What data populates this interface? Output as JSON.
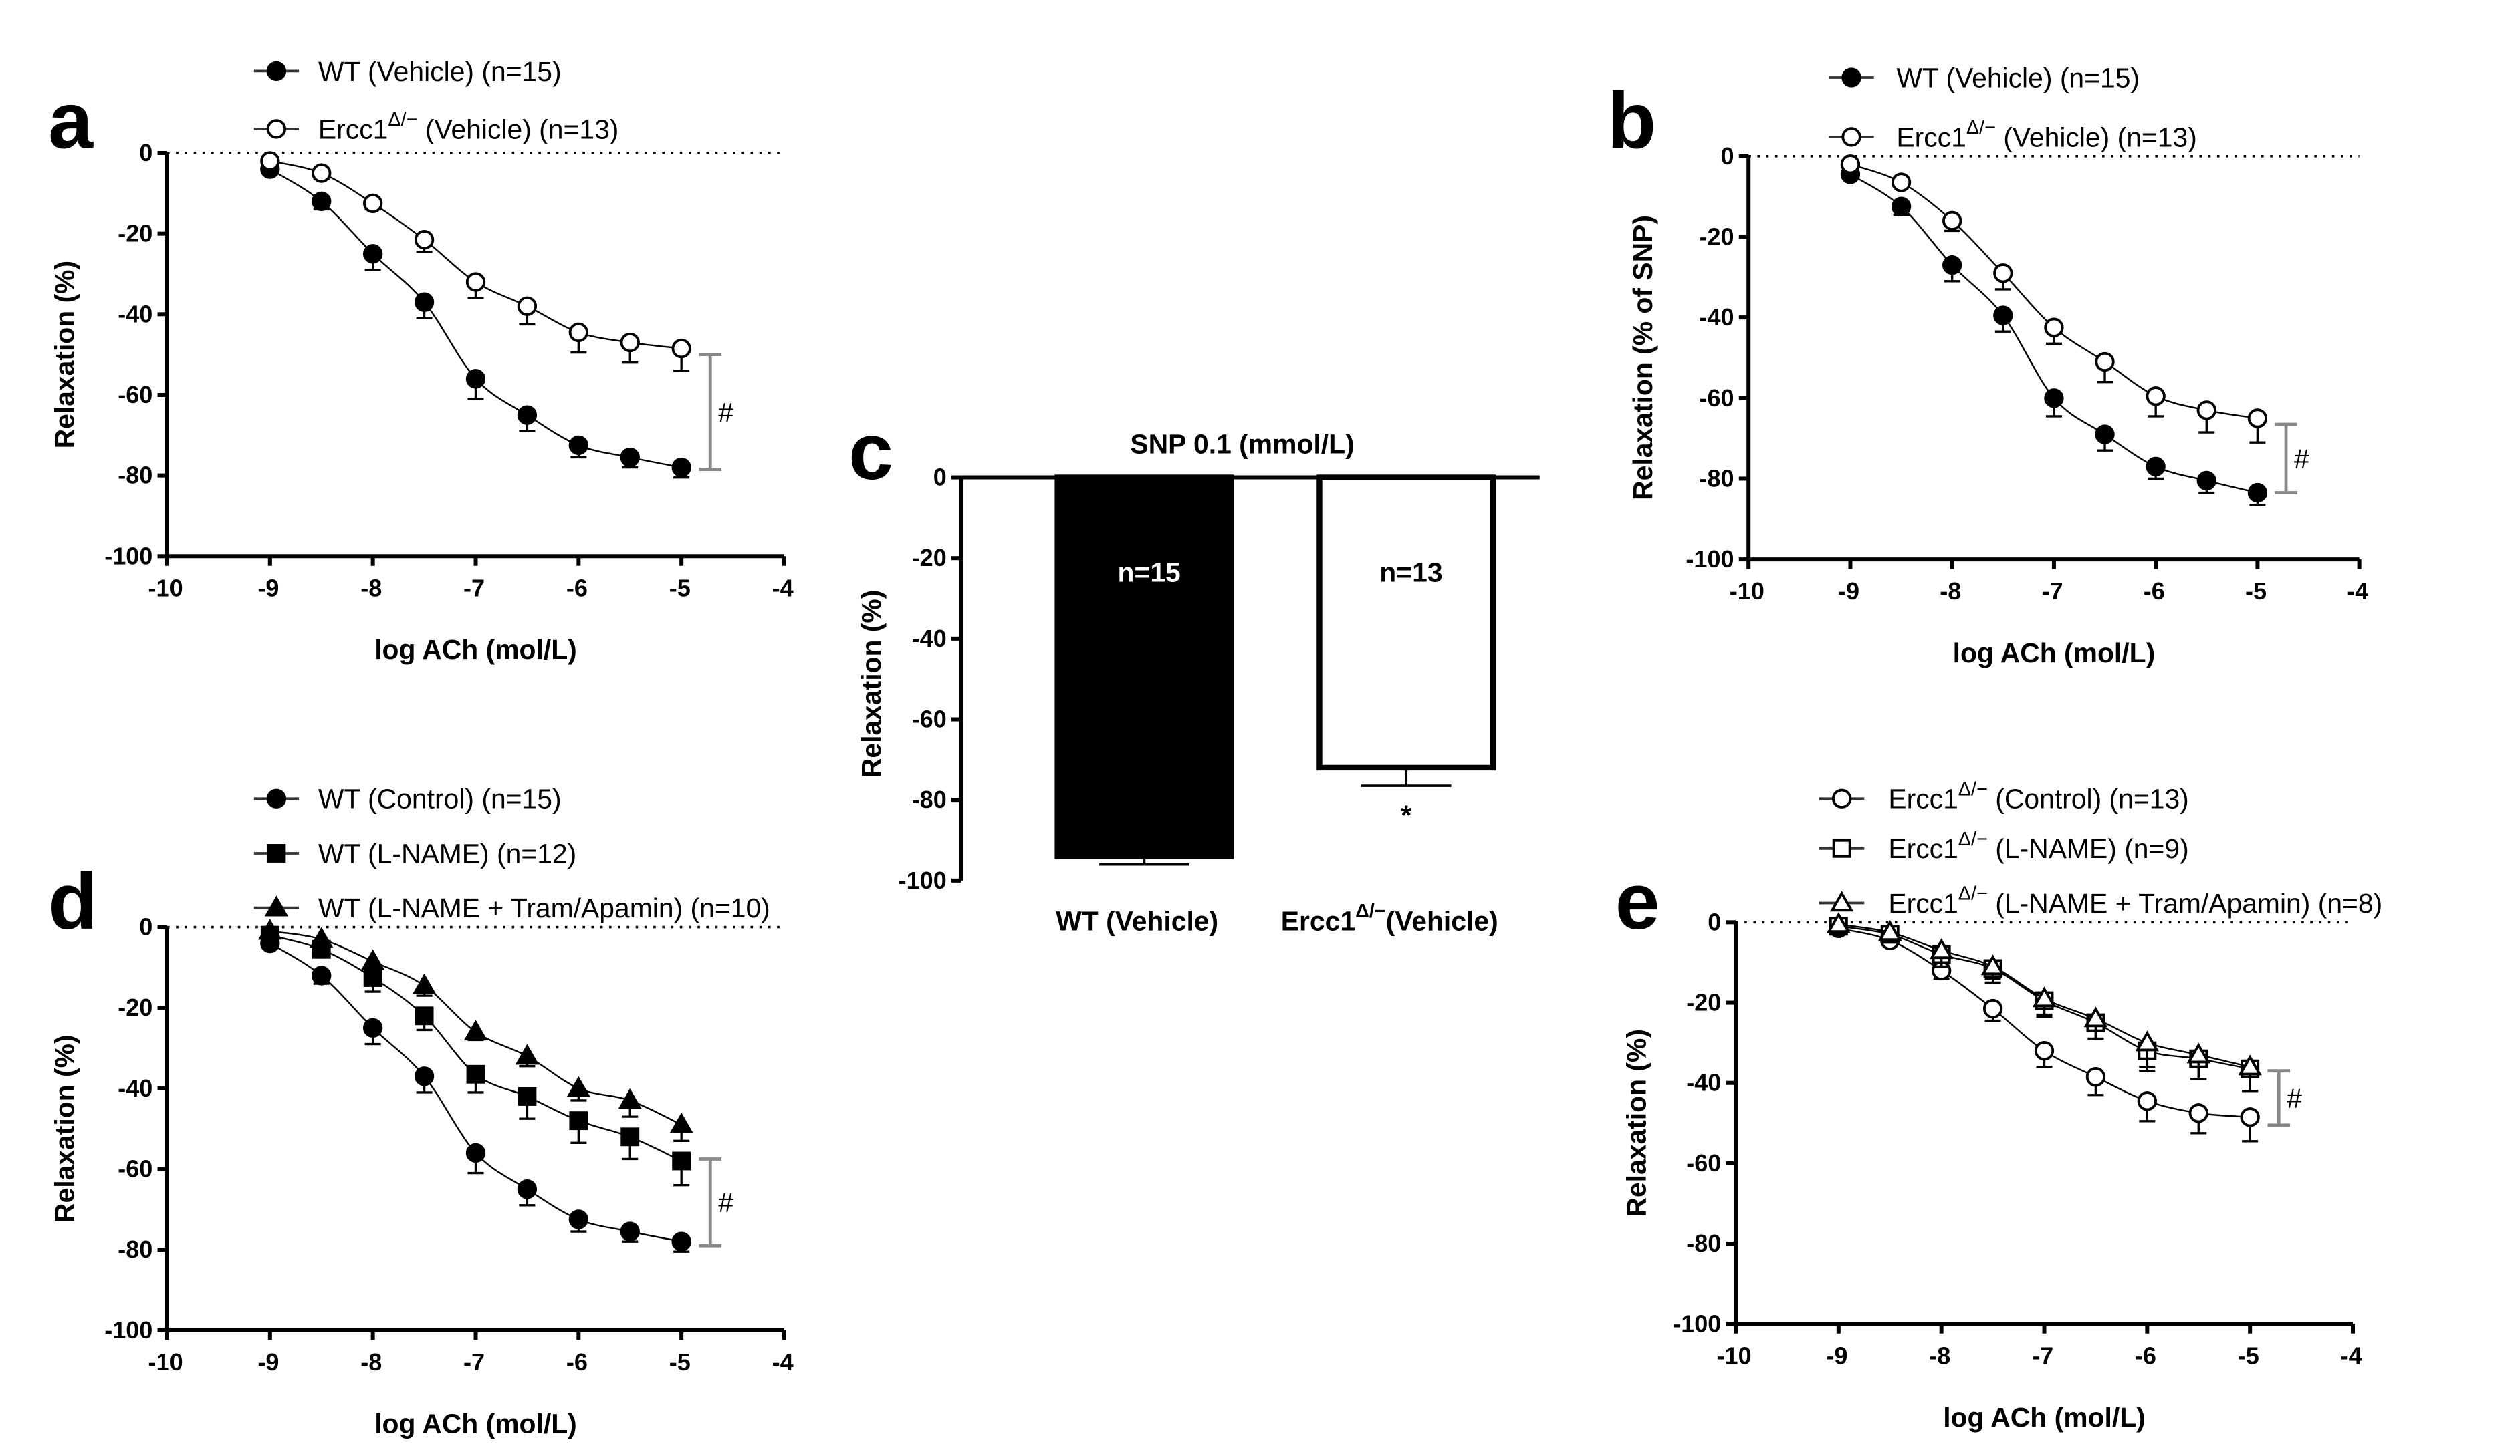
{
  "chart_data": [
    {
      "panel": "a",
      "type": "line",
      "xlabel": "log ACh (mol/L)",
      "ylabel": "Relaxation (%)",
      "xlim": [
        -10,
        -4
      ],
      "ylim": [
        -100,
        0
      ],
      "xticks": [
        -10,
        -9,
        -8,
        -7,
        -6,
        -5,
        -4
      ],
      "yticks": [
        0,
        -20,
        -40,
        -60,
        -80,
        -100
      ],
      "x": [
        -9,
        -8.5,
        -8,
        -7.5,
        -7,
        -6.5,
        -6,
        -5.5,
        -5
      ],
      "series": [
        {
          "name": "WT (Vehicle) (n=15)",
          "label": "WT (Vehicle) (n=15)",
          "marker": "circle-filled",
          "values": [
            -4,
            -12,
            -25,
            -37,
            -56,
            -65,
            -72.5,
            -75.5,
            -78
          ],
          "sem": [
            1,
            2,
            4,
            4,
            5,
            4,
            3,
            2.5,
            2.5
          ]
        },
        {
          "name": "Ercc1Δ/− (Vehicle) (n=13)",
          "label": "Ercc1",
          "sup": "Δ/−",
          "rest": " (Vehicle) (n=13)",
          "marker": "circle-open",
          "values": [
            -2,
            -5,
            -12.5,
            -21.5,
            -32,
            -38,
            -44.5,
            -47,
            -48.5
          ],
          "sem": [
            1,
            1.5,
            1.5,
            3,
            4,
            4.5,
            5,
            5,
            5.5
          ]
        }
      ],
      "significance": {
        "symbol": "#",
        "range": [
          -50,
          -78.5
        ]
      }
    },
    {
      "panel": "b",
      "type": "line",
      "xlabel": "log ACh (mol/L)",
      "ylabel": "Relaxation (% of SNP)",
      "xlim": [
        -10,
        -4
      ],
      "ylim": [
        -100,
        0
      ],
      "xticks": [
        -10,
        -9,
        -8,
        -7,
        -6,
        -5,
        -4
      ],
      "yticks": [
        0,
        -20,
        -40,
        -60,
        -80,
        -100
      ],
      "x": [
        -9,
        -8.5,
        -8,
        -7.5,
        -7,
        -6.5,
        -6,
        -5.5,
        -5
      ],
      "series": [
        {
          "name": "WT (Vehicle) (n=15)",
          "label": "WT (Vehicle) (n=15)",
          "marker": "circle-filled",
          "values": [
            -4.5,
            -12.5,
            -27,
            -39.5,
            -60,
            -69,
            -77,
            -80.5,
            -83.5
          ],
          "sem": [
            1,
            2,
            4,
            4,
            4.5,
            4,
            3,
            3,
            3
          ]
        },
        {
          "name": "Ercc1Δ/− (Vehicle) (n=13)",
          "label": "Ercc1",
          "sup": "Δ/−",
          "rest": " (Vehicle) (n=13)",
          "marker": "circle-open",
          "values": [
            -2,
            -6.5,
            -16,
            -29,
            -42.5,
            -51,
            -59.5,
            -63,
            -65
          ],
          "sem": [
            1,
            1,
            2.5,
            4,
            4,
            5,
            5,
            5.5,
            6
          ]
        }
      ],
      "significance": {
        "symbol": "#",
        "range": [
          -66.5,
          -83.5
        ]
      }
    },
    {
      "panel": "c",
      "type": "bar",
      "title": "SNP 0.1 (mmol/L)",
      "ylabel": "Relaxation (%)",
      "ylim": [
        -100,
        0
      ],
      "yticks": [
        0,
        -20,
        -40,
        -60,
        -80,
        -100
      ],
      "categories": [
        "WT (Vehicle)",
        "Ercc1Δ/−(Vehicle)"
      ],
      "category_parts": [
        {
          "label": "WT (Vehicle)"
        },
        {
          "label": "Ercc1",
          "sup": "Δ/−",
          "rest": "(Vehicle)"
        }
      ],
      "values": [
        -94,
        -72
      ],
      "sem": [
        2,
        4.5
      ],
      "bar_labels": [
        "n=15",
        "n=13"
      ],
      "fills": [
        "#000000",
        "#ffffff"
      ],
      "significance": {
        "symbol": "*",
        "category": 1
      }
    },
    {
      "panel": "d",
      "type": "line",
      "xlabel": "log ACh (mol/L)",
      "ylabel": "Relaxation (%)",
      "xlim": [
        -10,
        -4
      ],
      "ylim": [
        -100,
        0
      ],
      "xticks": [
        -10,
        -9,
        -8,
        -7,
        -6,
        -5,
        -4
      ],
      "yticks": [
        0,
        -20,
        -40,
        -60,
        -80,
        -100
      ],
      "x": [
        -9,
        -8.5,
        -8,
        -7.5,
        -7,
        -6.5,
        -6,
        -5.5,
        -5
      ],
      "series": [
        {
          "name": "WT (Control) (n=15)",
          "label": "WT (Control) (n=15)",
          "marker": "circle-filled",
          "values": [
            -4,
            -12,
            -25,
            -37,
            -56,
            -65,
            -72.5,
            -75.5,
            -78
          ],
          "sem": [
            1,
            2,
            4,
            4,
            5,
            4,
            3,
            2.5,
            2.5
          ]
        },
        {
          "name": "WT (L-NAME) (n=12)",
          "label": "WT (L-NAME) (n=12)",
          "marker": "square-filled",
          "values": [
            -2,
            -5.5,
            -12.5,
            -22,
            -36.5,
            -42,
            -48,
            -52,
            -58
          ],
          "sem": [
            1,
            1.5,
            3.5,
            3.5,
            4.5,
            5.5,
            5.5,
            5.5,
            6
          ]
        },
        {
          "name": "WT (L-NAME + Tram/Apamin) (n=10)",
          "label": "WT (L-NAME + Tram/Apamin) (n=10)",
          "marker": "triangle-filled",
          "values": [
            -1,
            -3,
            -8.5,
            -14.5,
            -26,
            -32,
            -40,
            -43,
            -49
          ],
          "sem": [
            1,
            1,
            2.5,
            2.5,
            2,
            2.5,
            3,
            4,
            4
          ]
        }
      ],
      "significance": {
        "symbol": "#",
        "range": [
          -57.5,
          -79
        ]
      }
    },
    {
      "panel": "e",
      "type": "line",
      "xlabel": "log ACh (mol/L)",
      "ylabel": "Relaxation (%)",
      "xlim": [
        -10,
        -4
      ],
      "ylim": [
        -100,
        0
      ],
      "xticks": [
        -10,
        -9,
        -8,
        -7,
        -6,
        -5,
        -4
      ],
      "yticks": [
        0,
        -20,
        -40,
        -60,
        -80,
        -100
      ],
      "x": [
        -9,
        -8.5,
        -8,
        -7.5,
        -7,
        -6.5,
        -6,
        -5.5,
        -5
      ],
      "series": [
        {
          "name": "Ercc1Δ/− (Control) (n=13)",
          "label": "Ercc1",
          "sup": "Δ/−",
          "rest": "  (Control) (n=13)",
          "marker": "circle-open",
          "values": [
            -1.5,
            -4.5,
            -12,
            -21.5,
            -32,
            -38.5,
            -44.5,
            -47.5,
            -48.5
          ],
          "sem": [
            1,
            1,
            2,
            3,
            4,
            4.5,
            5,
            5,
            6
          ]
        },
        {
          "name": "Ercc1Δ/− (L-NAME) (n=9)",
          "label": "Ercc1",
          "sup": "Δ/−",
          "rest": "  (L-NAME) (n=9)",
          "marker": "square-open",
          "values": [
            -1,
            -3,
            -8,
            -11.5,
            -19.5,
            -25,
            -32,
            -34,
            -36.5
          ],
          "sem": [
            1,
            1,
            3,
            3.5,
            4,
            4,
            5,
            5,
            5.5
          ]
        },
        {
          "name": "Ercc1Δ/− (L-NAME + Tram/Apamin) (n=8)",
          "label": "Ercc1",
          "sup": "Δ/−",
          "rest": "  (L-NAME + Tram/Apamin) (n=8)",
          "marker": "triangle-open",
          "values": [
            -0.5,
            -2.5,
            -7,
            -11,
            -19,
            -24,
            -30,
            -33,
            -36
          ],
          "sem": [
            1,
            1,
            3,
            3,
            4,
            5,
            6,
            6,
            6
          ]
        }
      ],
      "significance": {
        "symbol": "#",
        "range": [
          -37,
          -50.5
        ]
      }
    }
  ]
}
